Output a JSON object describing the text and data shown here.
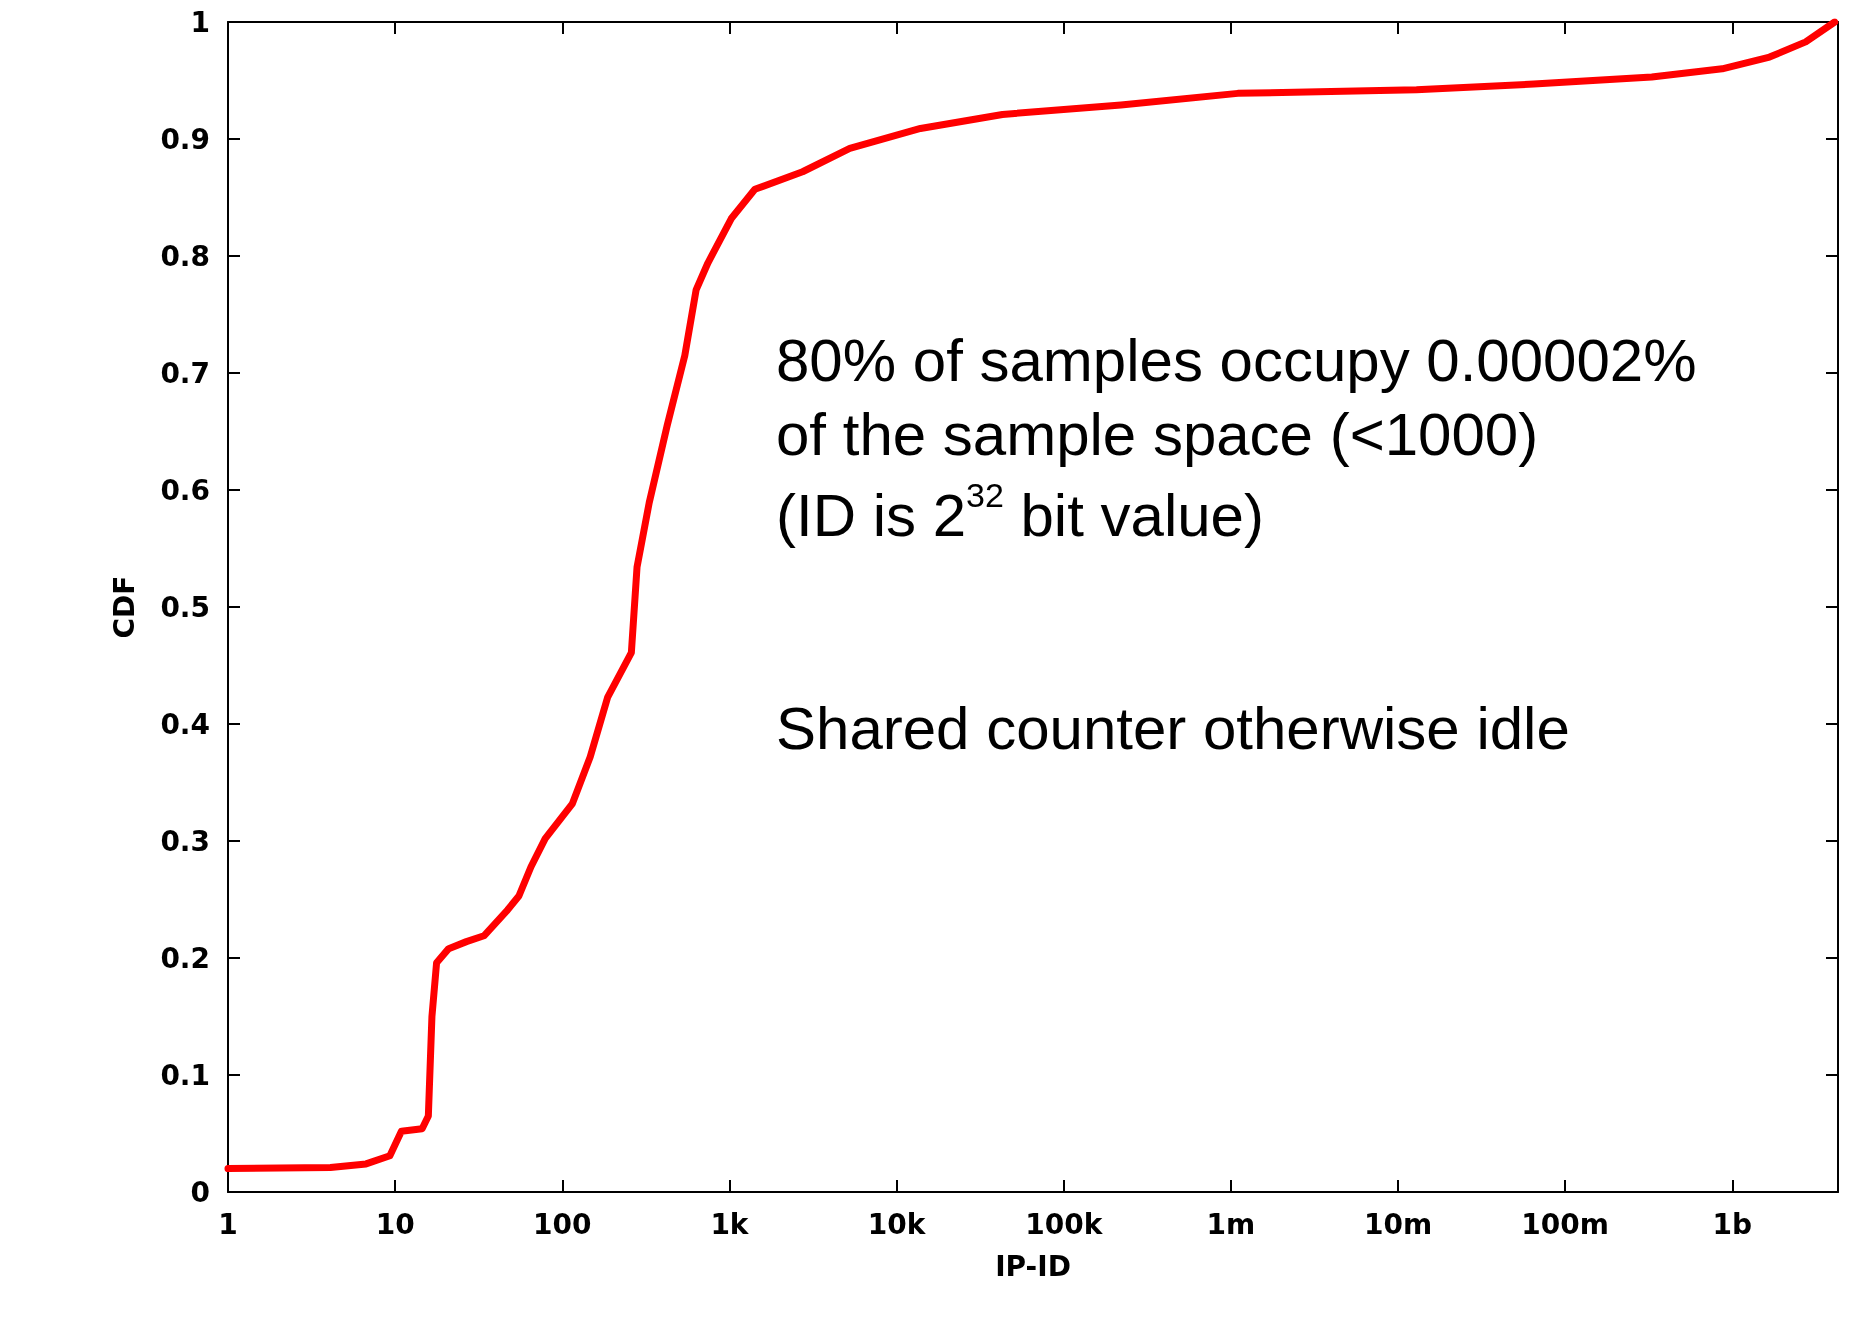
{
  "chart_data": {
    "type": "line",
    "xlabel": "IP-ID",
    "ylabel": "CDF",
    "log": "x",
    "grid": false,
    "marker": "none",
    "line_style": "solid",
    "xlim": [
      1,
      4290000000
    ],
    "ylim": [
      0,
      1
    ],
    "xticks": [
      1,
      10,
      100,
      {
        "value": 1000,
        "label": "1k"
      },
      {
        "value": 10000,
        "label": "10k"
      },
      {
        "value": 100000,
        "label": "100k"
      },
      {
        "value": 1000000,
        "label": "1m"
      },
      {
        "value": 10000000,
        "label": "10m"
      },
      {
        "value": 100000000,
        "label": "100m"
      },
      {
        "value": 1000000000,
        "label": "1b"
      }
    ],
    "yticks": [
      0,
      0.1,
      0.2,
      0.3,
      0.4,
      0.5,
      0.6,
      0.7,
      0.8,
      0.9,
      1
    ],
    "annotations": [
      "80% of samples occupy 0.00002%",
      "of the sample space (<1000)",
      "(ID is 2$^{32}$ bit value)",
      "Shared counter otherwise idle"
    ],
    "series": [
      {
        "color": "#ff0000",
        "x": [
          1,
          4.1,
          6.7,
          9.3,
          10.9,
          14.5,
          15.8,
          16.6,
          17.7,
          20.9,
          26.7,
          34,
          47,
          55,
          65,
          79,
          115,
          147,
          187,
          259,
          280,
          331,
          424,
          541,
          632,
          743,
          1026,
          1420,
          2740,
          5250,
          13900,
          43000,
          220000,
          1100000,
          12900000,
          65000000,
          330000000,
          870000000,
          1670000000,
          2750000000,
          4100000000
        ],
        "values": [
          0.02,
          0.021,
          0.024,
          0.031,
          0.052,
          0.054,
          0.065,
          0.15,
          0.196,
          0.208,
          0.214,
          0.219,
          0.241,
          0.253,
          0.278,
          0.302,
          0.332,
          0.372,
          0.423,
          0.461,
          0.534,
          0.589,
          0.655,
          0.715,
          0.771,
          0.794,
          0.832,
          0.857,
          0.872,
          0.892,
          0.909,
          0.921,
          0.929,
          0.939,
          0.942,
          0.947,
          0.953,
          0.96,
          0.97,
          0.983,
          1.0
        ]
      }
    ]
  }
}
